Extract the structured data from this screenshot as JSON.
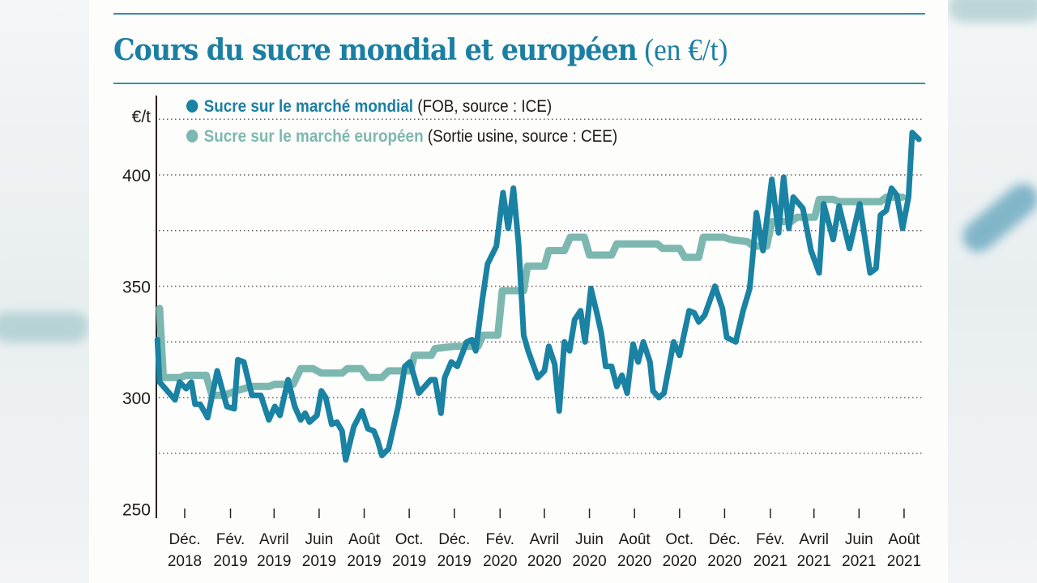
{
  "chart_data": {
    "type": "line",
    "title": "Cours du sucre mondial et européen",
    "title_unit": "(en €/t)",
    "ylabel": "€/t",
    "ylim": [
      250,
      425
    ],
    "yticks": [
      250,
      300,
      350,
      400
    ],
    "grid": "dotted horizontal",
    "legend_placement": "top-left",
    "xtick_labels": [
      {
        "date": "2018-12-01",
        "month": "Déc.",
        "year": "2018"
      },
      {
        "date": "2019-02-01",
        "month": "Fév.",
        "year": "2019"
      },
      {
        "date": "2019-04-01",
        "month": "Avril",
        "year": "2019"
      },
      {
        "date": "2019-06-01",
        "month": "Juin",
        "year": "2019"
      },
      {
        "date": "2019-08-01",
        "month": "Août",
        "year": "2019"
      },
      {
        "date": "2019-10-01",
        "month": "Oct.",
        "year": "2019"
      },
      {
        "date": "2019-12-01",
        "month": "Déc.",
        "year": "2019"
      },
      {
        "date": "2020-02-01",
        "month": "Fév.",
        "year": "2020"
      },
      {
        "date": "2020-04-01",
        "month": "Avril",
        "year": "2020"
      },
      {
        "date": "2020-06-01",
        "month": "Juin",
        "year": "2020"
      },
      {
        "date": "2020-08-01",
        "month": "Août",
        "year": "2020"
      },
      {
        "date": "2020-10-01",
        "month": "Oct.",
        "year": "2020"
      },
      {
        "date": "2020-12-01",
        "month": "Déc.",
        "year": "2020"
      },
      {
        "date": "2021-02-01",
        "month": "Fév.",
        "year": "2021"
      },
      {
        "date": "2021-04-01",
        "month": "Avril",
        "year": "2021"
      },
      {
        "date": "2021-06-01",
        "month": "Juin",
        "year": "2021"
      },
      {
        "date": "2021-08-01",
        "month": "Août",
        "year": "2021"
      }
    ],
    "series": [
      {
        "name": "Sucre sur le marché européen",
        "note": "(Sortie usine, source : CEE)",
        "color": "#7db8b0",
        "points": [
          [
            "2018-10-28",
            340
          ],
          [
            "2018-11-02",
            309
          ],
          [
            "2018-11-25",
            309
          ],
          [
            "2018-12-03",
            310
          ],
          [
            "2018-12-30",
            310
          ],
          [
            "2019-01-07",
            301
          ],
          [
            "2019-01-23",
            301
          ],
          [
            "2019-02-08",
            303
          ],
          [
            "2019-03-01",
            305
          ],
          [
            "2019-03-25",
            305
          ],
          [
            "2019-04-02",
            306
          ],
          [
            "2019-04-27",
            306
          ],
          [
            "2019-05-07",
            313
          ],
          [
            "2019-05-24",
            313
          ],
          [
            "2019-06-04",
            311
          ],
          [
            "2019-07-02",
            311
          ],
          [
            "2019-07-09",
            313
          ],
          [
            "2019-07-28",
            313
          ],
          [
            "2019-08-06",
            309
          ],
          [
            "2019-08-25",
            309
          ],
          [
            "2019-09-03",
            312
          ],
          [
            "2019-10-03",
            312
          ],
          [
            "2019-10-08",
            319
          ],
          [
            "2019-10-31",
            319
          ],
          [
            "2019-11-05",
            322
          ],
          [
            "2019-11-30",
            323
          ],
          [
            "2019-12-07",
            323
          ],
          [
            "2020-01-02",
            323
          ],
          [
            "2020-01-09",
            328
          ],
          [
            "2020-01-29",
            328
          ],
          [
            "2020-02-04",
            348
          ],
          [
            "2020-03-04",
            348
          ],
          [
            "2020-03-09",
            359
          ],
          [
            "2020-04-01",
            359
          ],
          [
            "2020-04-07",
            366
          ],
          [
            "2020-04-28",
            366
          ],
          [
            "2020-05-06",
            372
          ],
          [
            "2020-05-25",
            372
          ],
          [
            "2020-06-01",
            364
          ],
          [
            "2020-07-01",
            364
          ],
          [
            "2020-07-08",
            369
          ],
          [
            "2020-09-01",
            369
          ],
          [
            "2020-09-08",
            367
          ],
          [
            "2020-10-01",
            367
          ],
          [
            "2020-10-08",
            363
          ],
          [
            "2020-10-27",
            363
          ],
          [
            "2020-11-02",
            372
          ],
          [
            "2020-11-30",
            372
          ],
          [
            "2020-12-09",
            371
          ],
          [
            "2021-01-01",
            370
          ],
          [
            "2021-01-09",
            368
          ],
          [
            "2021-01-27",
            368
          ],
          [
            "2021-02-03",
            379
          ],
          [
            "2021-03-01",
            379
          ],
          [
            "2021-03-09",
            381
          ],
          [
            "2021-04-02",
            381
          ],
          [
            "2021-04-08",
            389
          ],
          [
            "2021-04-27",
            389
          ],
          [
            "2021-05-05",
            388
          ],
          [
            "2021-06-30",
            388
          ],
          [
            "2021-07-08",
            390
          ],
          [
            "2021-07-30",
            390
          ]
        ]
      },
      {
        "name": "Sucre sur le marché mondial",
        "note": "(FOB, source : ICE)",
        "color": "#1a82a3",
        "points": [
          [
            "2018-10-25",
            326
          ],
          [
            "2018-10-28",
            307
          ],
          [
            "2018-11-18",
            299
          ],
          [
            "2018-11-24",
            307
          ],
          [
            "2018-12-03",
            304
          ],
          [
            "2018-12-10",
            307
          ],
          [
            "2018-12-15",
            297
          ],
          [
            "2018-12-22",
            297
          ],
          [
            "2019-01-01",
            291
          ],
          [
            "2019-01-14",
            312
          ],
          [
            "2019-01-27",
            296
          ],
          [
            "2019-02-06",
            295
          ],
          [
            "2019-02-11",
            317
          ],
          [
            "2019-02-19",
            316
          ],
          [
            "2019-03-02",
            301
          ],
          [
            "2019-03-14",
            301
          ],
          [
            "2019-03-25",
            290
          ],
          [
            "2019-04-02",
            296
          ],
          [
            "2019-04-09",
            292
          ],
          [
            "2019-04-20",
            308
          ],
          [
            "2019-04-29",
            296
          ],
          [
            "2019-05-07",
            290
          ],
          [
            "2019-05-13",
            293
          ],
          [
            "2019-05-19",
            289
          ],
          [
            "2019-05-29",
            292
          ],
          [
            "2019-06-04",
            303
          ],
          [
            "2019-06-10",
            300
          ],
          [
            "2019-06-18",
            288
          ],
          [
            "2019-06-25",
            289
          ],
          [
            "2019-07-02",
            285
          ],
          [
            "2019-07-07",
            272
          ],
          [
            "2019-07-18",
            287
          ],
          [
            "2019-07-29",
            294
          ],
          [
            "2019-08-06",
            286
          ],
          [
            "2019-08-14",
            285
          ],
          [
            "2019-08-19",
            281
          ],
          [
            "2019-08-25",
            274
          ],
          [
            "2019-09-03",
            277
          ],
          [
            "2019-09-16",
            296
          ],
          [
            "2019-09-25",
            314
          ],
          [
            "2019-10-02",
            316
          ],
          [
            "2019-10-14",
            302
          ],
          [
            "2019-10-30",
            308
          ],
          [
            "2019-11-05",
            308
          ],
          [
            "2019-11-13",
            293
          ],
          [
            "2019-11-18",
            309
          ],
          [
            "2019-11-27",
            316
          ],
          [
            "2019-12-05",
            314
          ],
          [
            "2019-12-18",
            325
          ],
          [
            "2019-12-25",
            326
          ],
          [
            "2019-12-30",
            321
          ],
          [
            "2020-01-08",
            344
          ],
          [
            "2020-01-15",
            360
          ],
          [
            "2020-01-27",
            368
          ],
          [
            "2020-02-05",
            392
          ],
          [
            "2020-02-12",
            376
          ],
          [
            "2020-02-19",
            394
          ],
          [
            "2020-02-26",
            369
          ],
          [
            "2020-03-04",
            328
          ],
          [
            "2020-03-10",
            321
          ],
          [
            "2020-03-23",
            309
          ],
          [
            "2020-04-01",
            312
          ],
          [
            "2020-04-07",
            323
          ],
          [
            "2020-04-15",
            315
          ],
          [
            "2020-04-21",
            294
          ],
          [
            "2020-04-28",
            325
          ],
          [
            "2020-05-05",
            321
          ],
          [
            "2020-05-12",
            335
          ],
          [
            "2020-05-20",
            339
          ],
          [
            "2020-05-26",
            325
          ],
          [
            "2020-06-03",
            349
          ],
          [
            "2020-06-11",
            338
          ],
          [
            "2020-06-17",
            329
          ],
          [
            "2020-06-23",
            314
          ],
          [
            "2020-07-01",
            314
          ],
          [
            "2020-07-08",
            305
          ],
          [
            "2020-07-15",
            310
          ],
          [
            "2020-07-22",
            302
          ],
          [
            "2020-07-30",
            324
          ],
          [
            "2020-08-06",
            316
          ],
          [
            "2020-08-13",
            325
          ],
          [
            "2020-08-22",
            316
          ],
          [
            "2020-08-26",
            303
          ],
          [
            "2020-09-03",
            300
          ],
          [
            "2020-09-10",
            302
          ],
          [
            "2020-09-23",
            325
          ],
          [
            "2020-10-01",
            319
          ],
          [
            "2020-10-14",
            339
          ],
          [
            "2020-10-21",
            338
          ],
          [
            "2020-10-27",
            334
          ],
          [
            "2020-11-04",
            337
          ],
          [
            "2020-11-18",
            350
          ],
          [
            "2020-11-28",
            340
          ],
          [
            "2020-12-04",
            327
          ],
          [
            "2020-12-16",
            325
          ],
          [
            "2020-12-26",
            339
          ],
          [
            "2021-01-04",
            349
          ],
          [
            "2021-01-09",
            367
          ],
          [
            "2021-01-13",
            383
          ],
          [
            "2021-01-22",
            366
          ],
          [
            "2021-02-03",
            398
          ],
          [
            "2021-02-12",
            374
          ],
          [
            "2021-02-19",
            399
          ],
          [
            "2021-02-26",
            376
          ],
          [
            "2021-03-04",
            390
          ],
          [
            "2021-03-17",
            385
          ],
          [
            "2021-03-28",
            366
          ],
          [
            "2021-04-08",
            356
          ],
          [
            "2021-04-14",
            387
          ],
          [
            "2021-04-27",
            371
          ],
          [
            "2021-05-05",
            386
          ],
          [
            "2021-05-19",
            367
          ],
          [
            "2021-06-02",
            387
          ],
          [
            "2021-06-16",
            356
          ],
          [
            "2021-06-24",
            358
          ],
          [
            "2021-06-30",
            382
          ],
          [
            "2021-07-08",
            384
          ],
          [
            "2021-07-15",
            394
          ],
          [
            "2021-07-22",
            391
          ],
          [
            "2021-07-30",
            376
          ],
          [
            "2021-08-07",
            390
          ],
          [
            "2021-08-12",
            419
          ],
          [
            "2021-08-21",
            416
          ]
        ]
      }
    ]
  },
  "legend": {
    "world_label": "Sucre sur le marché mondial",
    "world_note": "(FOB, source : ICE)",
    "eu_label": "Sucre sur le marché européen",
    "eu_note": "(Sortie usine, source : CEE)"
  },
  "colors": {
    "accent": "#1b7fa3",
    "world": "#1a82a3",
    "eu": "#7db8b0"
  }
}
